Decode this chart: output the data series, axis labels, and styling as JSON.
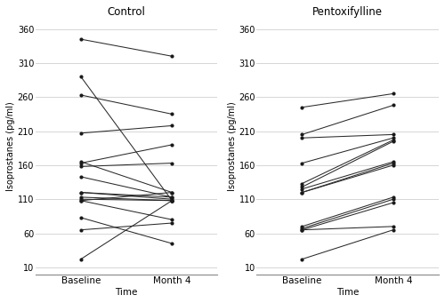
{
  "control": {
    "baseline": [
      345,
      290,
      263,
      207,
      165,
      163,
      158,
      143,
      120,
      120,
      113,
      110,
      108,
      108,
      83,
      65,
      22
    ],
    "month4": [
      320,
      108,
      235,
      218,
      120,
      190,
      163,
      113,
      113,
      110,
      108,
      108,
      120,
      80,
      45,
      75,
      108
    ]
  },
  "pentoxifylline": {
    "baseline": [
      245,
      205,
      200,
      163,
      133,
      128,
      125,
      120,
      120,
      70,
      67,
      65,
      65,
      22
    ],
    "month4": [
      265,
      248,
      205,
      200,
      197,
      195,
      165,
      163,
      160,
      113,
      110,
      105,
      70,
      65
    ]
  },
  "title_control": "Control",
  "title_pento": "Pentoxifylline",
  "xlabel": "Time",
  "ylabel": "Isoprostanes (pg/ml)",
  "yticks": [
    10,
    60,
    110,
    160,
    210,
    260,
    310,
    360
  ],
  "xtick_labels": [
    "Baseline",
    "Month 4"
  ],
  "ylim": [
    0,
    375
  ],
  "background_color": "#ffffff",
  "line_color": "#2a2a2a",
  "dot_color": "#1a1a1a",
  "grid_color": "#d0d0d0",
  "spine_color": "#888888"
}
